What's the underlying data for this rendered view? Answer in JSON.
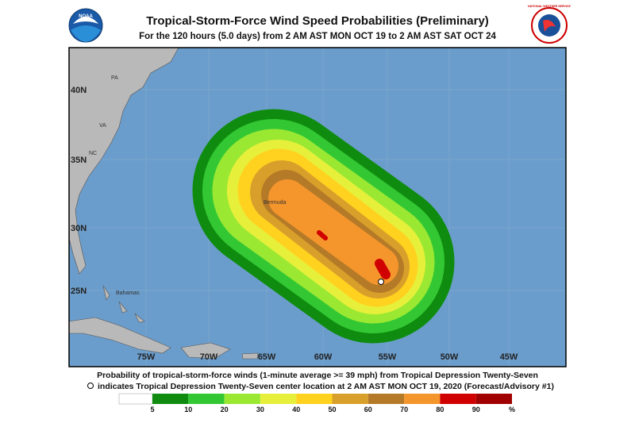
{
  "header": {
    "title": "Tropical-Storm-Force Wind Speed Probabilities (Preliminary)",
    "subtitle": "For the 120 hours (5.0 days) from 2 AM AST MON OCT 19 to 2 AM AST SAT OCT 24"
  },
  "logos": {
    "noaa": "NOAA",
    "nws": "NATIONAL WEATHER SERVICE"
  },
  "map": {
    "lat_labels": [
      "40N",
      "35N",
      "30N",
      "25N"
    ],
    "lon_labels": [
      "75W",
      "70W",
      "65W",
      "60W",
      "55W",
      "50W",
      "45W"
    ],
    "places": [
      "PA",
      "VA",
      "NC",
      "Bermuda",
      "Bahamas"
    ]
  },
  "footer": {
    "line1": "Probability of tropical-storm-force winds (1-minute average >= 39 mph) from Tropical Depression Twenty-Seven",
    "line2": "indicates Tropical Depression Twenty-Seven center location at 2 AM AST MON OCT 19, 2020 (Forecast/Advisory #1)"
  },
  "legend": {
    "labels": [
      5,
      10,
      20,
      30,
      40,
      50,
      60,
      70,
      80,
      90,
      "%"
    ]
  }
}
